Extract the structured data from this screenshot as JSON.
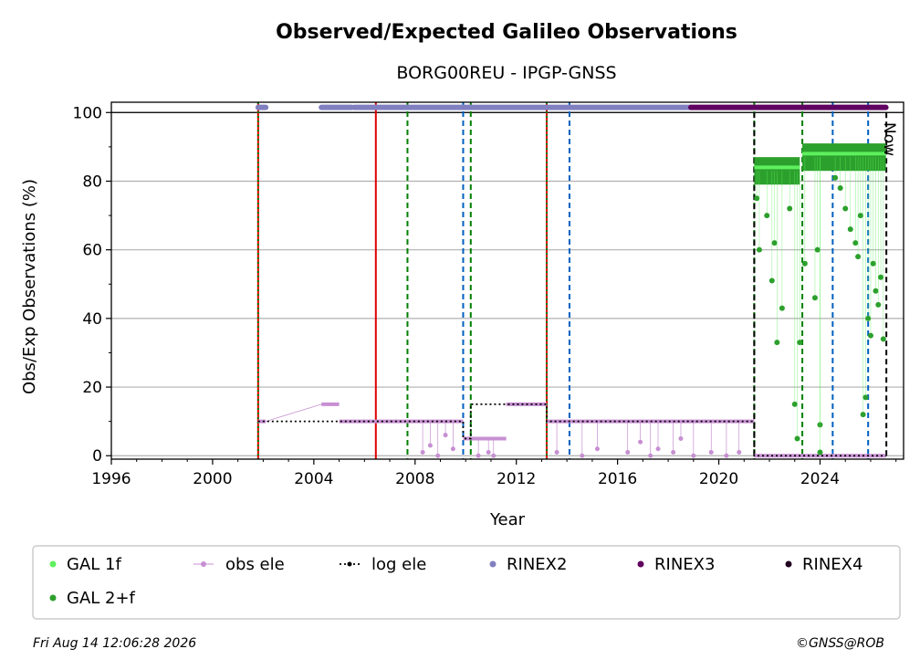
{
  "chart_data": {
    "type": "scatter",
    "title": "Observed/Expected Galileo Observations",
    "subtitle": "BORG00REU - IPGP-GNSS",
    "xlabel": "Year",
    "ylabel": "Obs/Exp Observations (%)",
    "xlim": [
      1996.0,
      2027.3
    ],
    "ylim": [
      -1,
      103
    ],
    "xticks": [
      "1996",
      "2000",
      "2004",
      "2008",
      "2012",
      "2016",
      "2020",
      "2024"
    ],
    "xtick_values": [
      1996,
      2000,
      2004,
      2008,
      2012,
      2016,
      2020,
      2024
    ],
    "yticks": [
      "0",
      "20",
      "40",
      "60",
      "80",
      "100"
    ],
    "ytick_values": [
      0,
      20,
      40,
      60,
      80,
      100
    ],
    "grid": "horizontal",
    "now_label": "Now",
    "now_x": 2026.62,
    "legend_position": "bottom",
    "colors": {
      "gal1f": "#5ef05e",
      "gal2f": "#2ca02c",
      "obs_ele": "#c78fd2",
      "log_ele": "#000000",
      "rinex2": "#8080c0",
      "rinex3": "#600060",
      "rinex4": "#200020",
      "red_line": "#e00000",
      "green_line": "#007f00",
      "blue_line": "#0060c0"
    },
    "legend": [
      {
        "label": "GAL 1f",
        "color": "#5ef05e",
        "marker": "dot"
      },
      {
        "label": "obs ele",
        "color": "#c78fd2",
        "marker": "line-dot"
      },
      {
        "label": "log ele",
        "color": "#000000",
        "marker": "dotted-line-dot"
      },
      {
        "label": "RINEX2",
        "color": "#8080c0",
        "marker": "dot"
      },
      {
        "label": "RINEX3",
        "color": "#600060",
        "marker": "dot"
      },
      {
        "label": "RINEX4",
        "color": "#200020",
        "marker": "dot"
      },
      {
        "label": "GAL 2+f",
        "color": "#2ca02c",
        "marker": "dot"
      }
    ],
    "vertical_lines": {
      "red_solid": [
        2006.45
      ],
      "red_green_dotted": [
        2001.8,
        2013.2
      ],
      "green_dashed": [
        2007.7,
        2010.2,
        2021.4,
        2023.3
      ],
      "blue_dashed": [
        2009.9,
        2014.1,
        2024.5,
        2025.9
      ],
      "black_dashed": [
        2021.4,
        2026.62
      ]
    },
    "rinex_bars": [
      {
        "format": "RINEX2",
        "from": 2001.8,
        "to": 2002.1
      },
      {
        "format": "RINEX2",
        "from": 2004.3,
        "to": 2005.5
      },
      {
        "format": "RINEX2",
        "from": 2005.6,
        "to": 2018.9
      },
      {
        "format": "RINEX3",
        "from": 2018.9,
        "to": 2026.6
      }
    ],
    "rinex_y": 101.5,
    "log_ele": [
      {
        "x": 2001.8,
        "y": 10
      },
      {
        "x": 2009.9,
        "y": 10
      },
      {
        "x": 2009.9,
        "y": 5
      },
      {
        "x": 2010.2,
        "y": 5
      },
      {
        "x": 2010.2,
        "y": 15
      },
      {
        "x": 2013.2,
        "y": 15
      },
      {
        "x": 2013.2,
        "y": 10
      },
      {
        "x": 2021.4,
        "y": 10
      },
      {
        "x": 2021.4,
        "y": 0
      },
      {
        "x": 2026.62,
        "y": 0
      }
    ],
    "obs_ele_segments": [
      {
        "from": 2001.8,
        "to": 2002.1,
        "y": 10
      },
      {
        "from": 2004.3,
        "to": 2005.0,
        "y": 15
      },
      {
        "from": 2005.0,
        "to": 2009.9,
        "y": 10
      },
      {
        "from": 2009.9,
        "to": 2010.2,
        "y": 5
      },
      {
        "from": 2010.2,
        "to": 2011.6,
        "y": 5
      },
      {
        "from": 2011.6,
        "to": 2013.2,
        "y": 15
      },
      {
        "from": 2013.2,
        "to": 2021.4,
        "y": 10
      },
      {
        "from": 2021.4,
        "to": 2026.6,
        "y": 0
      }
    ],
    "obs_ele_dips": [
      {
        "x": 2008.3,
        "y": 1
      },
      {
        "x": 2008.6,
        "y": 3
      },
      {
        "x": 2008.9,
        "y": 0
      },
      {
        "x": 2009.2,
        "y": 6
      },
      {
        "x": 2009.5,
        "y": 2
      },
      {
        "x": 2010.5,
        "y": 0
      },
      {
        "x": 2010.9,
        "y": 1
      },
      {
        "x": 2011.1,
        "y": 0
      },
      {
        "x": 2013.6,
        "y": 1
      },
      {
        "x": 2014.6,
        "y": 0
      },
      {
        "x": 2015.2,
        "y": 2
      },
      {
        "x": 2016.4,
        "y": 1
      },
      {
        "x": 2016.9,
        "y": 4
      },
      {
        "x": 2017.3,
        "y": 0
      },
      {
        "x": 2017.6,
        "y": 2
      },
      {
        "x": 2018.2,
        "y": 1
      },
      {
        "x": 2018.5,
        "y": 5
      },
      {
        "x": 2019.0,
        "y": 0
      },
      {
        "x": 2019.7,
        "y": 1
      },
      {
        "x": 2020.3,
        "y": 0
      },
      {
        "x": 2020.8,
        "y": 1
      }
    ],
    "gal1f": [
      {
        "from": 2021.4,
        "to": 2023.2,
        "y": 84
      },
      {
        "from": 2023.3,
        "to": 2026.6,
        "y": 88
      }
    ],
    "gal2f_band": [
      {
        "from": 2021.4,
        "to": 2023.2,
        "y": 83
      },
      {
        "from": 2023.3,
        "to": 2026.6,
        "y": 87
      }
    ],
    "gal2f_outliers": [
      {
        "x": 2021.5,
        "y": 75
      },
      {
        "x": 2021.6,
        "y": 60
      },
      {
        "x": 2021.9,
        "y": 70
      },
      {
        "x": 2022.1,
        "y": 51
      },
      {
        "x": 2022.2,
        "y": 62
      },
      {
        "x": 2022.3,
        "y": 33
      },
      {
        "x": 2022.5,
        "y": 43
      },
      {
        "x": 2022.8,
        "y": 72
      },
      {
        "x": 2023.0,
        "y": 15
      },
      {
        "x": 2023.1,
        "y": 5
      },
      {
        "x": 2023.2,
        "y": 33
      },
      {
        "x": 2023.4,
        "y": 56
      },
      {
        "x": 2023.8,
        "y": 46
      },
      {
        "x": 2023.9,
        "y": 60
      },
      {
        "x": 2024.0,
        "y": 9
      },
      {
        "x": 2024.0,
        "y": 1
      },
      {
        "x": 2024.6,
        "y": 81
      },
      {
        "x": 2024.8,
        "y": 78
      },
      {
        "x": 2025.0,
        "y": 72
      },
      {
        "x": 2025.2,
        "y": 66
      },
      {
        "x": 2025.4,
        "y": 62
      },
      {
        "x": 2025.5,
        "y": 58
      },
      {
        "x": 2025.6,
        "y": 70
      },
      {
        "x": 2025.7,
        "y": 12
      },
      {
        "x": 2025.8,
        "y": 17
      },
      {
        "x": 2025.9,
        "y": 40
      },
      {
        "x": 2026.0,
        "y": 35
      },
      {
        "x": 2026.1,
        "y": 56
      },
      {
        "x": 2026.2,
        "y": 48
      },
      {
        "x": 2026.3,
        "y": 44
      },
      {
        "x": 2026.4,
        "y": 52
      },
      {
        "x": 2026.5,
        "y": 34
      }
    ]
  },
  "footer": {
    "date": "Fri Aug 14 12:06:28 2026",
    "credit": "©GNSS@ROB"
  }
}
